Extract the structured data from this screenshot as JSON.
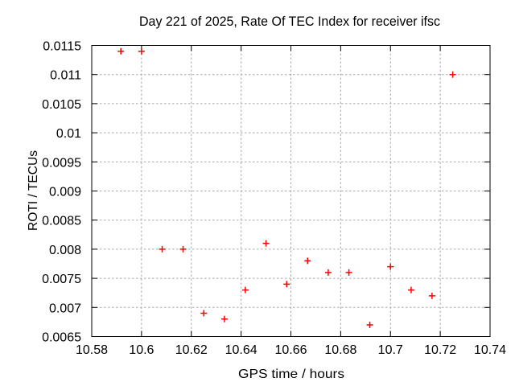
{
  "chart_data": {
    "type": "scatter",
    "title": "Day 221 of 2025, Rate Of TEC Index for receiver ifsc",
    "xlabel": "GPS time / hours",
    "ylabel": "ROTI / TECUs",
    "xlim": [
      10.58,
      10.74
    ],
    "ylim": [
      0.0065,
      0.0115
    ],
    "x_ticks": [
      10.58,
      10.6,
      10.62,
      10.64,
      10.66,
      10.68,
      10.7,
      10.72,
      10.74
    ],
    "x_tick_labels": [
      "10.58",
      "10.6",
      "10.62",
      "10.64",
      "10.66",
      "10.68",
      "10.7",
      "10.72",
      "10.74"
    ],
    "y_ticks": [
      0.0065,
      0.007,
      0.0075,
      0.008,
      0.0085,
      0.009,
      0.0095,
      0.01,
      0.0105,
      0.011,
      0.0115
    ],
    "y_tick_labels": [
      "0.0065",
      "0.007",
      "0.0075",
      "0.008",
      "0.0085",
      "0.009",
      "0.0095",
      "0.01",
      "0.0105",
      "0.011",
      "0.0115"
    ],
    "grid": true,
    "legend": "none",
    "marker": {
      "shape": "plus",
      "color": "#ff0000"
    },
    "axis_color": "#000000",
    "grid_color": "#a8a8a8",
    "series": [
      {
        "name": "ROTI",
        "points": [
          [
            10.5917,
            0.0114
          ],
          [
            10.6,
            0.0114
          ],
          [
            10.6083,
            0.008
          ],
          [
            10.6167,
            0.008
          ],
          [
            10.625,
            0.0069
          ],
          [
            10.6333,
            0.0068
          ],
          [
            10.6417,
            0.0073
          ],
          [
            10.65,
            0.0081
          ],
          [
            10.6583,
            0.0074
          ],
          [
            10.6667,
            0.0078
          ],
          [
            10.675,
            0.0076
          ],
          [
            10.6833,
            0.0076
          ],
          [
            10.6917,
            0.0067
          ],
          [
            10.7,
            0.0077
          ],
          [
            10.7083,
            0.0073
          ],
          [
            10.7167,
            0.0072
          ],
          [
            10.725,
            0.011
          ]
        ]
      }
    ]
  }
}
